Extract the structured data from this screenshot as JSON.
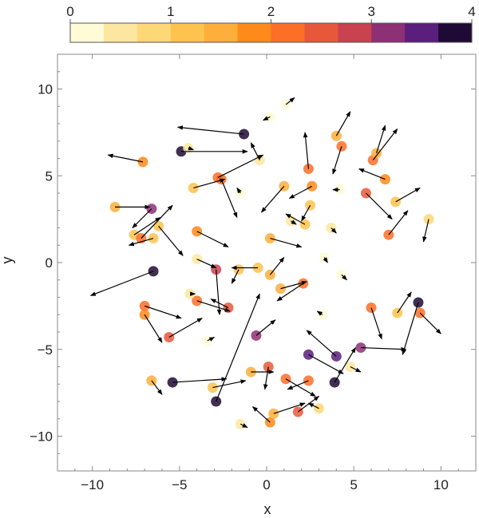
{
  "chart_data": {
    "type": "scatter",
    "title": "",
    "xlabel": "x",
    "ylabel": "y",
    "xlim": [
      -12,
      12
    ],
    "ylim": [
      -12,
      12
    ],
    "xticks": [
      {
        "value": -10,
        "label": "−10"
      },
      {
        "value": -5,
        "label": "−5"
      },
      {
        "value": 0,
        "label": "0"
      },
      {
        "value": 5,
        "label": "5"
      },
      {
        "value": 10,
        "label": "10"
      }
    ],
    "yticks": [
      {
        "value": -10,
        "label": "−10"
      },
      {
        "value": -5,
        "label": "−5"
      },
      {
        "value": 0,
        "label": "0"
      },
      {
        "value": 5,
        "label": "5"
      },
      {
        "value": 10,
        "label": "10"
      }
    ],
    "colorbar": {
      "min": 0,
      "max": 4,
      "ticks": [
        {
          "value": 0,
          "label": "0"
        },
        {
          "value": 1,
          "label": "1"
        },
        {
          "value": 2,
          "label": "2"
        },
        {
          "value": 3,
          "label": "3"
        },
        {
          "value": 4,
          "label": "4"
        }
      ],
      "colors": [
        "#fffbd7",
        "#fde7a0",
        "#fed776",
        "#fdc34e",
        "#fdae3b",
        "#fd8a19",
        "#fc6f27",
        "#e7583a",
        "#c94250",
        "#8e3075",
        "#5a1f7d",
        "#1e0a34"
      ]
    },
    "grid": false,
    "points": [
      {
        "x": -1.3,
        "y": 7.4,
        "v": 3.7,
        "dx": -3.8,
        "dy": 0.4
      },
      {
        "x": -4.9,
        "y": 6.4,
        "v": 3.9,
        "dx": 3.8,
        "dy": 0
      },
      {
        "x": -7.1,
        "y": 5.8,
        "v": 1.8,
        "dx": -2.0,
        "dy": 0.4
      },
      {
        "x": -0.4,
        "y": 5.9,
        "v": 0.6,
        "dx": -0.5,
        "dy": 1.0
      },
      {
        "x": -2.8,
        "y": 4.9,
        "v": 2.2,
        "dx": 2.6,
        "dy": 1.3
      },
      {
        "x": -2.6,
        "y": 4.8,
        "v": 2.0,
        "dx": 0.9,
        "dy": -2.2
      },
      {
        "x": -4.2,
        "y": 4.3,
        "v": 1.0,
        "dx": 1.8,
        "dy": 0.5
      },
      {
        "x": -8.7,
        "y": 3.2,
        "v": 1.5,
        "dx": 2.0,
        "dy": 0
      },
      {
        "x": -6.6,
        "y": 3.1,
        "v": 3.2,
        "dx": -1.1,
        "dy": -1.1
      },
      {
        "x": -6.2,
        "y": 2.1,
        "v": 1.2,
        "dx": 1.4,
        "dy": -1.7
      },
      {
        "x": -7.6,
        "y": 1.6,
        "v": 1.3,
        "dx": 1.5,
        "dy": 1.0
      },
      {
        "x": -7.2,
        "y": 1.4,
        "v": 2.3,
        "dx": 1.8,
        "dy": 1.9
      },
      {
        "x": -6.5,
        "y": 1.4,
        "v": 1.2,
        "dx": -1.4,
        "dy": -0.4
      },
      {
        "x": -4.0,
        "y": 1.8,
        "v": 1.7,
        "dx": 1.8,
        "dy": -0.9
      },
      {
        "x": -4.0,
        "y": 0.2,
        "v": 0.6,
        "dx": 1.1,
        "dy": -0.5
      },
      {
        "x": -6.5,
        "y": -0.5,
        "v": 3.8,
        "dx": -3.6,
        "dy": -1.4
      },
      {
        "x": -2.9,
        "y": -0.4,
        "v": 2.8,
        "dx": 0.2,
        "dy": -2.6
      },
      {
        "x": -0.5,
        "y": -0.3,
        "v": 1.3,
        "dx": -1.5,
        "dy": 0
      },
      {
        "x": 1.0,
        "y": 4.4,
        "v": 1.6,
        "dx": -1.3,
        "dy": -1.5
      },
      {
        "x": 2.6,
        "y": 4.4,
        "v": 1.9,
        "dx": -1.3,
        "dy": -0.7
      },
      {
        "x": 2.4,
        "y": 5.4,
        "v": 2.3,
        "dx": -0.2,
        "dy": 2.1
      },
      {
        "x": 4.3,
        "y": 6.7,
        "v": 2.1,
        "dx": -0.5,
        "dy": -1.6
      },
      {
        "x": 4.0,
        "y": 7.3,
        "v": 1.6,
        "dx": 0.8,
        "dy": 1.4
      },
      {
        "x": 6.1,
        "y": 5.9,
        "v": 2.1,
        "dx": 1.4,
        "dy": 1.8
      },
      {
        "x": 6.3,
        "y": 6.3,
        "v": 1.6,
        "dx": 0.5,
        "dy": 1.6
      },
      {
        "x": 6.8,
        "y": 4.8,
        "v": 1.9,
        "dx": -1.5,
        "dy": 0.6
      },
      {
        "x": 5.7,
        "y": 4.0,
        "v": 2.4,
        "dx": 1.5,
        "dy": -1.5
      },
      {
        "x": 7.4,
        "y": 3.5,
        "v": 1.2,
        "dx": 1.4,
        "dy": 0.8
      },
      {
        "x": 7.0,
        "y": 1.6,
        "v": 2.0,
        "dx": 1.1,
        "dy": 1.4
      },
      {
        "x": 9.3,
        "y": 2.5,
        "v": 0.8,
        "dx": -0.3,
        "dy": -1.3
      },
      {
        "x": 2.2,
        "y": 2.2,
        "v": 1.3,
        "dx": -1.1,
        "dy": 0.6
      },
      {
        "x": 2.5,
        "y": 3.3,
        "v": 1.0,
        "dx": -0.5,
        "dy": -0.9
      },
      {
        "x": 0.2,
        "y": 1.4,
        "v": 1.5,
        "dx": 1.8,
        "dy": -0.5
      },
      {
        "x": 0.2,
        "y": -0.7,
        "v": 1.4,
        "dx": 0.8,
        "dy": 1.0
      },
      {
        "x": 2.1,
        "y": -1.2,
        "v": 2.0,
        "dx": -1.5,
        "dy": -1.0
      },
      {
        "x": 0.8,
        "y": -1.5,
        "v": 1.6,
        "dx": 1.5,
        "dy": 0.4
      },
      {
        "x": -1.6,
        "y": -0.4,
        "v": 1.3,
        "dx": -0.4,
        "dy": -0.8
      },
      {
        "x": -4.0,
        "y": -2.2,
        "v": 2.1,
        "dx": 1.9,
        "dy": -0.6
      },
      {
        "x": -2.2,
        "y": -2.6,
        "v": 2.5,
        "dx": -1.0,
        "dy": 0.5
      },
      {
        "x": -7.0,
        "y": -2.5,
        "v": 2.3,
        "dx": 2.1,
        "dy": -0.7
      },
      {
        "x": -7.0,
        "y": -3.0,
        "v": 1.9,
        "dx": 1.0,
        "dy": -1.6
      },
      {
        "x": -5.6,
        "y": -4.3,
        "v": 2.4,
        "dx": 1.9,
        "dy": 1.1
      },
      {
        "x": -2.9,
        "y": -8.0,
        "v": 4.0,
        "dx": 2.5,
        "dy": 6.2
      },
      {
        "x": -0.6,
        "y": -4.2,
        "v": 3.0,
        "dx": 1.1,
        "dy": 0.9
      },
      {
        "x": -0.9,
        "y": -6.3,
        "v": 1.6,
        "dx": 1.3,
        "dy": 0
      },
      {
        "x": 0.1,
        "y": -6.0,
        "v": 2.6,
        "dx": -0.2,
        "dy": -1.3
      },
      {
        "x": 2.4,
        "y": -5.3,
        "v": 3.4,
        "dx": 2.0,
        "dy": -1.1
      },
      {
        "x": 1.1,
        "y": -6.7,
        "v": 2.0,
        "dx": 1.7,
        "dy": -1.0
      },
      {
        "x": 2.4,
        "y": -6.8,
        "v": 2.1,
        "dx": -1.2,
        "dy": -0.5
      },
      {
        "x": 4.0,
        "y": -5.4,
        "v": 3.5,
        "dx": -1.7,
        "dy": 1.5
      },
      {
        "x": 3.9,
        "y": -6.9,
        "v": 3.7,
        "dx": 1.2,
        "dy": 2.0
      },
      {
        "x": 5.4,
        "y": -4.9,
        "v": 3.0,
        "dx": 2.6,
        "dy": -0.1
      },
      {
        "x": 6.0,
        "y": -2.6,
        "v": 2.1,
        "dx": 0.6,
        "dy": -1.8
      },
      {
        "x": 7.5,
        "y": -2.9,
        "v": 1.1,
        "dx": 0.8,
        "dy": 1.2
      },
      {
        "x": 8.7,
        "y": -2.3,
        "v": 4.0,
        "dx": -0.9,
        "dy": -3.0
      },
      {
        "x": 8.8,
        "y": -2.9,
        "v": 2.3,
        "dx": 1.2,
        "dy": -1.2
      },
      {
        "x": -6.6,
        "y": -6.8,
        "v": 1.4,
        "dx": 0.6,
        "dy": -0.8
      },
      {
        "x": -5.4,
        "y": -6.9,
        "v": 3.9,
        "dx": 3.1,
        "dy": 0.2
      },
      {
        "x": -3.1,
        "y": -7.2,
        "v": 1.2,
        "dx": 1.9,
        "dy": 0.4
      },
      {
        "x": 0.2,
        "y": -9.2,
        "v": 1.8,
        "dx": -1.0,
        "dy": 0.9
      },
      {
        "x": 1.8,
        "y": -8.6,
        "v": 2.4,
        "dx": 1.2,
        "dy": 0.9
      },
      {
        "x": 0.4,
        "y": -8.7,
        "v": 1.5,
        "dx": 1.8,
        "dy": 0.6
      },
      {
        "x": 3.0,
        "y": -8.4,
        "v": 0.7,
        "dx": -0.6,
        "dy": 0.3
      },
      {
        "x": 1.1,
        "y": 9.1,
        "v": 0.3,
        "dx": 0.5,
        "dy": 0.4
      },
      {
        "x": 0.2,
        "y": 8.4,
        "v": 0.3,
        "dx": -0.4,
        "dy": -0.2
      },
      {
        "x": 4.2,
        "y": 4.2,
        "v": 0.3,
        "dx": -0.4,
        "dy": 0
      },
      {
        "x": 3.7,
        "y": 2.0,
        "v": 0.4,
        "dx": 0.3,
        "dy": -0.3
      },
      {
        "x": 3.3,
        "y": 0.3,
        "v": 0.2,
        "dx": 0.2,
        "dy": -0.3
      },
      {
        "x": 4.3,
        "y": -0.7,
        "v": 0.3,
        "dx": 0.3,
        "dy": -0.3
      },
      {
        "x": 3.2,
        "y": -3.0,
        "v": 0.3,
        "dx": -0.3,
        "dy": 0.2
      },
      {
        "x": -3.4,
        "y": -4.5,
        "v": 0.3,
        "dx": 0.4,
        "dy": 0.2
      },
      {
        "x": -1.5,
        "y": -9.3,
        "v": 0.4,
        "dx": 0.4,
        "dy": -0.2
      },
      {
        "x": -4.4,
        "y": -1.8,
        "v": 0.4,
        "dx": 0.3,
        "dy": 0
      },
      {
        "x": 4.8,
        "y": -6.0,
        "v": 0.6,
        "dx": 0.6,
        "dy": -0.3
      },
      {
        "x": -4.5,
        "y": 6.6,
        "v": 0.5,
        "dx": 0.3,
        "dy": -0.1
      },
      {
        "x": -1.5,
        "y": 4.0,
        "v": 0.3,
        "dx": -0.2,
        "dy": 0.3
      },
      {
        "x": 1.4,
        "y": 2.4,
        "v": 0.4,
        "dx": 0.3,
        "dy": -0.2
      }
    ]
  }
}
